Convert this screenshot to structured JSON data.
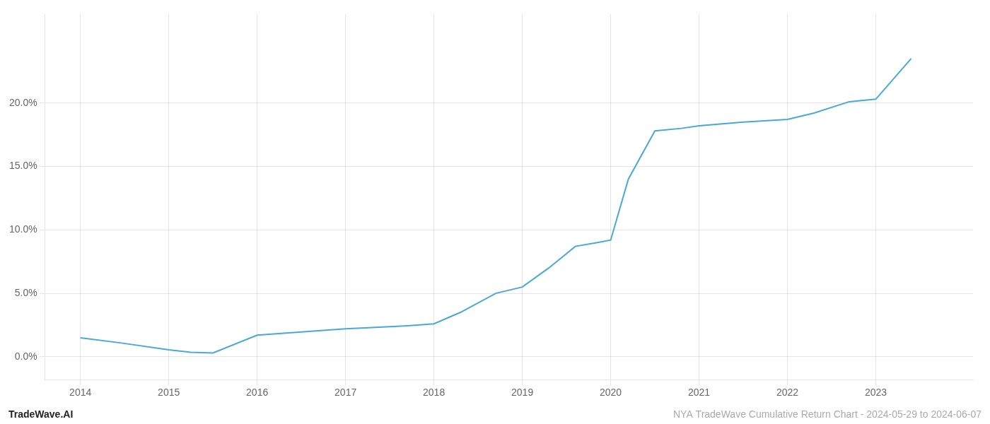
{
  "chart_data": {
    "type": "line",
    "x": [
      2014.0,
      2014.45,
      2015.0,
      2015.25,
      2015.5,
      2016.0,
      2016.5,
      2017.0,
      2017.3,
      2017.7,
      2018.0,
      2018.3,
      2018.7,
      2019.0,
      2019.3,
      2019.6,
      2019.85,
      2020.0,
      2020.2,
      2020.5,
      2020.8,
      2021.0,
      2021.5,
      2022.0,
      2022.3,
      2022.7,
      2023.0,
      2023.4
    ],
    "values": [
      1.5,
      1.1,
      0.55,
      0.35,
      0.3,
      1.7,
      1.95,
      2.2,
      2.3,
      2.45,
      2.6,
      3.5,
      5.0,
      5.5,
      7.0,
      8.7,
      9.0,
      9.2,
      14.0,
      17.8,
      18.0,
      18.2,
      18.5,
      18.7,
      19.2,
      20.1,
      20.3,
      23.5
    ],
    "color": "#4aa8d8",
    "xlim": [
      2013.6,
      2024.1
    ],
    "xticks": [
      2014,
      2015,
      2016,
      2017,
      2018,
      2019,
      2020,
      2021,
      2022,
      2023
    ],
    "ylim": [
      -1.8,
      27.0
    ],
    "yticks": [
      {
        "value": 0.0,
        "label": "0.0%"
      },
      {
        "value": 5.0,
        "label": "5.0%"
      },
      {
        "value": 10.0,
        "label": "10.0%"
      },
      {
        "value": 15.0,
        "label": "15.0%"
      },
      {
        "value": 20.0,
        "label": "20.0%"
      }
    ],
    "grid": true,
    "annotations": [
      {
        "text": "TradeWave.AI",
        "color": "#222222"
      },
      {
        "text": "NYA TradeWave Cumulative Return Chart - 2024-05-29 to 2024-06-07",
        "color": "#aaaaaa"
      }
    ]
  }
}
